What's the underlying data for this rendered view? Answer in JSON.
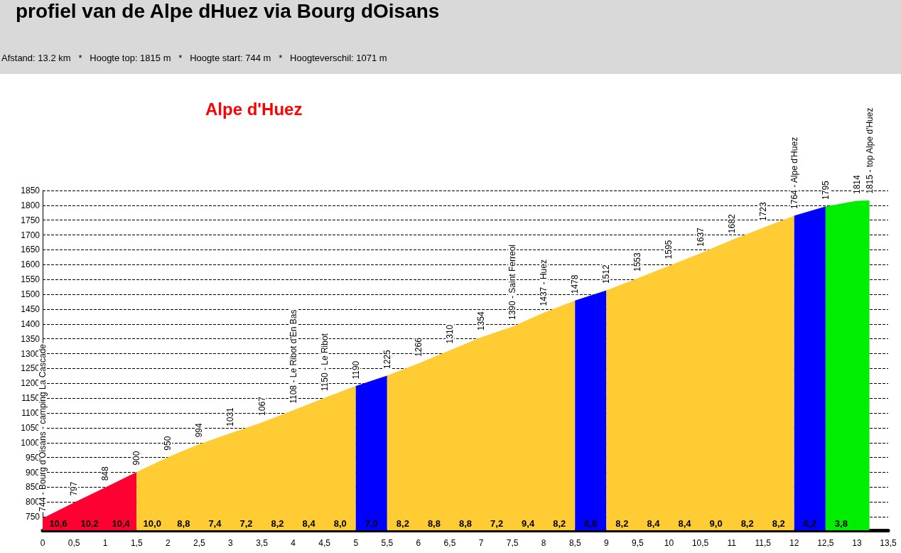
{
  "chart_data": {
    "type": "area",
    "title": "Alpe d'Huez",
    "subtitle": "Afstand: 13.2 km   *   Hoogte top: 1815 m   *   Hoogte start: 744 m   *   Hoogteverschil: 1071 m",
    "xlim": [
      0,
      13.5
    ],
    "xticks": [
      0,
      {
        "value": 0.5,
        "label": "0,5"
      },
      1,
      {
        "value": 1.5,
        "label": "1,5"
      },
      2,
      {
        "value": 2.5,
        "label": "2,5"
      },
      3,
      {
        "value": 3.5,
        "label": "3,5"
      },
      4,
      {
        "value": 4.5,
        "label": "4,5"
      },
      5,
      {
        "value": 5.5,
        "label": "5,5"
      },
      6,
      {
        "value": 6.5,
        "label": "6,5"
      },
      7,
      {
        "value": 7.5,
        "label": "7,5"
      },
      8,
      {
        "value": 8.5,
        "label": "8,5"
      },
      9,
      {
        "value": 9.5,
        "label": "9,5"
      },
      10,
      {
        "value": 10.5,
        "label": "10,5"
      },
      11,
      {
        "value": 11.5,
        "label": "11,5"
      },
      12,
      {
        "value": 12.5,
        "label": "12,5"
      },
      13,
      {
        "value": 13.5,
        "label": "13,5"
      }
    ],
    "ylim": [
      705,
      1850
    ],
    "yticks": [
      750,
      800,
      850,
      900,
      950,
      1000,
      1050,
      1100,
      1150,
      1200,
      1250,
      1300,
      1350,
      1400,
      1450,
      1500,
      1550,
      1600,
      1650,
      1700,
      1750,
      1800,
      1850
    ],
    "grid": "y",
    "series": [
      {
        "color": "#ff0033",
        "x": [
          0,
          0.5,
          1,
          1.5
        ],
        "values": [
          744,
          797,
          848,
          900
        ],
        "value_labels": [
          "744 - Bourg d'Oisans - camping La Cascade",
          "797",
          "848",
          null
        ]
      },
      {
        "color": "#ffcc33",
        "x": [
          1.5,
          2,
          2.5,
          3,
          3.5,
          4,
          4.5,
          5
        ],
        "values": [
          900,
          950,
          994,
          1031,
          1067,
          1108,
          1150,
          1190
        ],
        "value_labels": [
          "900",
          "950",
          "994",
          "1031",
          "1067",
          "1108 - Le Ribot d'En Bas",
          "1150 - Le Ribot",
          null
        ]
      },
      {
        "color": "#0000ff",
        "x": [
          5,
          5.5
        ],
        "values": [
          1190,
          1225
        ],
        "value_labels": [
          "1190",
          null
        ]
      },
      {
        "color": "#ffcc33",
        "x": [
          5.5,
          6,
          6.5,
          7,
          7.5,
          8,
          8.5
        ],
        "values": [
          1225,
          1266,
          1310,
          1354,
          1390,
          1437,
          1478
        ],
        "value_labels": [
          "1225",
          "1266",
          "1310",
          "1354",
          "1390 - Saint Ferreol",
          "1437 - Huez",
          null
        ]
      },
      {
        "color": "#0000ff",
        "x": [
          8.5,
          9
        ],
        "values": [
          1478,
          1512
        ],
        "value_labels": [
          "1478",
          null
        ]
      },
      {
        "color": "#ffcc33",
        "x": [
          9,
          9.5,
          10,
          10.5,
          11,
          11.5,
          12
        ],
        "values": [
          1512,
          1553,
          1595,
          1637,
          1682,
          1723,
          1764
        ],
        "value_labels": [
          "1512",
          "1553",
          "1595",
          "1637",
          "1682",
          "1723",
          null
        ]
      },
      {
        "color": "#0000ff",
        "x": [
          12,
          12.5
        ],
        "values": [
          1764,
          1795
        ],
        "value_labels": [
          "1764 - Alpe d'Huez",
          null
        ]
      },
      {
        "color": "#00ee00",
        "x": [
          12.5,
          13,
          13.2
        ],
        "values": [
          1795,
          1814,
          1815
        ],
        "value_labels": [
          "1795",
          "1814",
          "1815 - top Alpe d'Huez"
        ]
      }
    ],
    "annotations": [
      "profiel van de Alpe dHuez via Bourg dOisans",
      "10,6",
      "10,2",
      "10,4",
      "10,0",
      "8,8",
      "7,4",
      "7,2",
      "8,2",
      "8,4",
      "8,0",
      "7,0",
      "8,2",
      "8,8",
      "8,8",
      "7,2",
      "9,4",
      "8,2",
      "6,8",
      "8,2",
      "8,4",
      "8,4",
      "9,0",
      "8,2",
      "8,2",
      "6,2",
      "3,8"
    ]
  }
}
